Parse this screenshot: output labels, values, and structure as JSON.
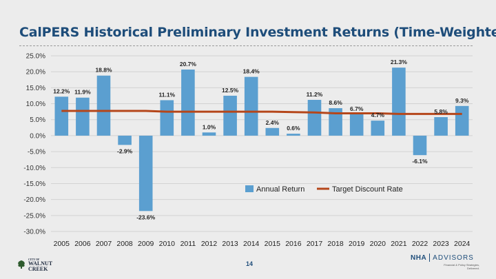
{
  "title": "CalPERS Historical Preliminary Investment Returns (Time-Weighted)",
  "page_number": "14",
  "logo_left": {
    "small": "CITY OF",
    "line1": "WALNUT",
    "line2": "CREEK",
    "icon": "tree-icon"
  },
  "logo_right": {
    "name_a": "NHA",
    "name_b": "ADVISORS",
    "tagline_1": "Financial & Policy Strategies,",
    "tagline_2": "Delivered."
  },
  "colors": {
    "bar": "#5b9fd0",
    "line": "#b5461a",
    "title": "#1e4d7a",
    "grid": "#d2d2d2"
  },
  "chart_data": {
    "type": "bar",
    "categories": [
      "2005",
      "2006",
      "2007",
      "2008",
      "2009",
      "2010",
      "2011",
      "2012",
      "2013",
      "2014",
      "2015",
      "2016",
      "2017",
      "2018",
      "2019",
      "2020",
      "2021",
      "2022",
      "2023",
      "2024"
    ],
    "series": [
      {
        "name": "Annual Return",
        "type": "bar",
        "values": [
          12.2,
          11.9,
          18.8,
          -2.9,
          -23.6,
          11.1,
          20.7,
          1.0,
          12.5,
          18.4,
          2.4,
          0.6,
          11.2,
          8.6,
          6.7,
          4.7,
          21.3,
          -6.1,
          5.8,
          9.3
        ]
      },
      {
        "name": "Target Discount Rate",
        "type": "line",
        "values": [
          7.75,
          7.75,
          7.75,
          7.75,
          7.75,
          7.5,
          7.5,
          7.5,
          7.5,
          7.5,
          7.5,
          7.375,
          7.25,
          7.0,
          7.0,
          7.0,
          6.8,
          6.8,
          6.8,
          6.8
        ]
      }
    ],
    "data_labels": [
      "12.2%",
      "11.9%",
      "18.8%",
      "-2.9%",
      "-23.6%",
      "11.1%",
      "20.7%",
      "1.0%",
      "12.5%",
      "18.4%",
      "2.4%",
      "0.6%",
      "11.2%",
      "8.6%",
      "6.7%",
      "4.7%",
      "21.3%",
      "-6.1%",
      "5.8%",
      "9.3%"
    ],
    "y_ticks": [
      "25.0%",
      "20.0%",
      "15.0%",
      "10.0%",
      "5.0%",
      "0.0%",
      "-5.0%",
      "-10.0%",
      "-15.0%",
      "-20.0%",
      "-25.0%",
      "-30.0%"
    ],
    "y_tick_values": [
      25,
      20,
      15,
      10,
      5,
      0,
      -5,
      -10,
      -15,
      -20,
      -25,
      -30
    ],
    "ylim": [
      -30,
      25
    ],
    "grid": true,
    "legend_position": "right, inside plot"
  }
}
